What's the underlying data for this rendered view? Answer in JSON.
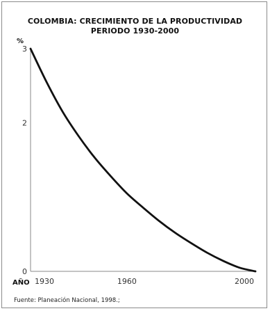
{
  "chart_data": {
    "type": "line",
    "title": "COLOMBIA: CRECIMIENTO DE LA PRODUCTIVIDAD",
    "subtitle": "PERIODO 1930-2000",
    "xlabel": "AÑO",
    "ylabel": "%",
    "xlim": [
      1930,
      2000
    ],
    "ylim": [
      0,
      3
    ],
    "x_ticks": [
      1930,
      1960,
      2000
    ],
    "y_ticks": [
      0,
      2,
      3
    ],
    "grid": false,
    "series": [
      {
        "x": [
          1930,
          1935,
          1940,
          1945,
          1950,
          1955,
          1960,
          1965,
          1970,
          1975,
          1980,
          1985,
          1990,
          1995,
          2000
        ],
        "values": [
          3.0,
          2.55,
          2.15,
          1.82,
          1.53,
          1.28,
          1.05,
          0.86,
          0.68,
          0.52,
          0.38,
          0.25,
          0.14,
          0.05,
          0.0
        ]
      }
    ],
    "source": "Fuente: Planeación Nacional, 1998.;"
  }
}
